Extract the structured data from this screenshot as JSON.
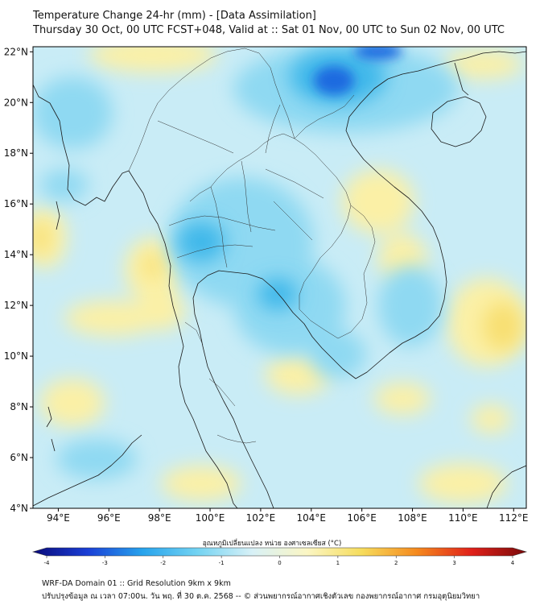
{
  "title": {
    "line1": "Temperature Change 24-hr (mm) - [Data Assimilation]",
    "line2": "Thursday 30 Oct, 00 UTC FCST+048, Valid at :: Sat 01 Nov, 00 UTC to Sun 02 Nov, 00 UTC"
  },
  "map": {
    "lon_range": [
      93,
      112.5
    ],
    "lat_range": [
      4,
      22.2
    ],
    "lat_ticks": [
      {
        "value": 4,
        "label": "4°N"
      },
      {
        "value": 6,
        "label": "6°N"
      },
      {
        "value": 8,
        "label": "8°N"
      },
      {
        "value": 10,
        "label": "10°N"
      },
      {
        "value": 12,
        "label": "12°N"
      },
      {
        "value": 14,
        "label": "14°N"
      },
      {
        "value": 16,
        "label": "16°N"
      },
      {
        "value": 18,
        "label": "18°N"
      },
      {
        "value": 20,
        "label": "20°N"
      },
      {
        "value": 22,
        "label": "22°N"
      }
    ],
    "lon_ticks": [
      {
        "value": 94,
        "label": "94°E"
      },
      {
        "value": 96,
        "label": "96°E"
      },
      {
        "value": 98,
        "label": "98°E"
      },
      {
        "value": 100,
        "label": "100°E"
      },
      {
        "value": 102,
        "label": "102°E"
      },
      {
        "value": 104,
        "label": "104°E"
      },
      {
        "value": 106,
        "label": "106°E"
      },
      {
        "value": 108,
        "label": "108°E"
      },
      {
        "value": 110,
        "label": "110°E"
      },
      {
        "value": 112,
        "label": "112°E"
      }
    ],
    "field_colors": {
      "background": "#c9ecf6",
      "warm": "#fbf0a6",
      "warm_strong": "#f8df72",
      "cool": "#8fd9f2",
      "cool_strong": "#3fb8ea",
      "cold": "#1e6be0"
    }
  },
  "colorbar": {
    "label": "อุณหภูมิเปลี่ยนแปลง หน่วย องศาเซลเซียส (°C)",
    "min": -4,
    "max": 4,
    "ticks": [
      {
        "value": -4,
        "label": "-4"
      },
      {
        "value": -3,
        "label": "-3"
      },
      {
        "value": -2,
        "label": "-2"
      },
      {
        "value": -1,
        "label": "-1"
      },
      {
        "value": 0,
        "label": "0"
      },
      {
        "value": 1,
        "label": "1"
      },
      {
        "value": 2,
        "label": "2"
      },
      {
        "value": 3,
        "label": "3"
      },
      {
        "value": 4,
        "label": "4"
      }
    ],
    "stops": [
      "#0a0a7a",
      "#1a3fd6",
      "#27a3ec",
      "#73d3f2",
      "#d8f1f7",
      "#fbf6c4",
      "#f6dc5c",
      "#f58a1e",
      "#e0201a",
      "#7a0a0a"
    ]
  },
  "footer": {
    "line1": "WRF-DA Domain 01 :: Grid Resolution 9km x 9km",
    "line2": "ปรับปรุงข้อมูล ณ เวลา 07:00น. วัน พฤ. ที่ 30 ต.ค. 2568 -- © ส่วนพยากรณ์อากาศเชิงตัวเลข กองพยากรณ์อากาศ กรมอุตุนิยมวิทยา"
  }
}
